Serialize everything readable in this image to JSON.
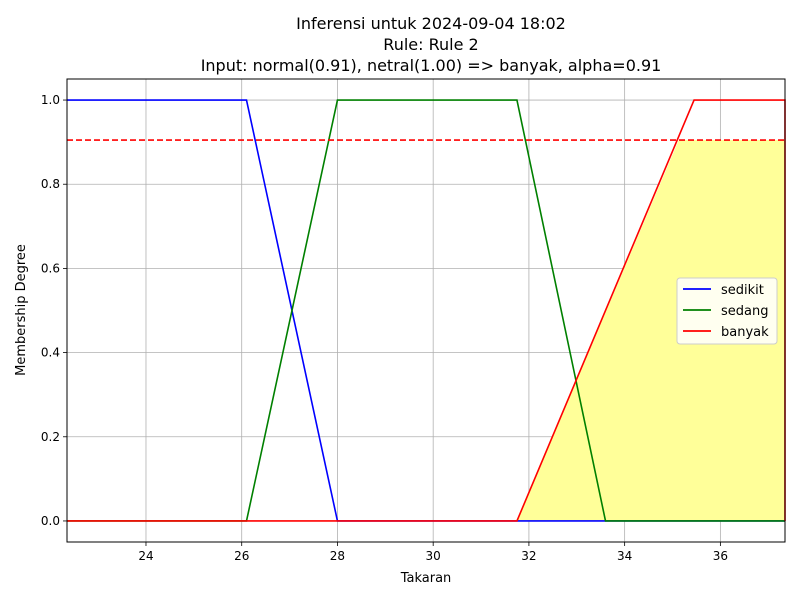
{
  "chart_data": {
    "type": "line",
    "title_lines": [
      "Inferensi untuk 2024-09-04 18:02",
      "Rule: Rule 2",
      "Input: normal(0.91), netral(1.00) => banyak, alpha=0.91"
    ],
    "xlabel": "Takaran",
    "ylabel": "Membership Degree",
    "xlim": [
      22.35,
      37.35
    ],
    "ylim": [
      -0.05,
      1.05
    ],
    "xticks": [
      24,
      26,
      28,
      30,
      32,
      34,
      36
    ],
    "yticks": [
      0.0,
      0.2,
      0.4,
      0.6,
      0.8,
      1.0
    ],
    "xtick_labels": [
      "24",
      "26",
      "28",
      "30",
      "32",
      "34",
      "36"
    ],
    "ytick_labels": [
      "0.0",
      "0.2",
      "0.4",
      "0.6",
      "0.8",
      "1.0"
    ],
    "grid": true,
    "legend_position": "center-right",
    "series": [
      {
        "name": "sedikit",
        "color": "#0000ff",
        "x": [
          22.35,
          26.1,
          28.0,
          37.35
        ],
        "y": [
          1.0,
          1.0,
          0.0,
          0.0
        ]
      },
      {
        "name": "sedang",
        "color": "#008000",
        "x": [
          22.35,
          26.1,
          28.0,
          31.75,
          33.6,
          37.35
        ],
        "y": [
          0.0,
          0.0,
          1.0,
          1.0,
          0.0,
          0.0
        ]
      },
      {
        "name": "banyak",
        "color": "#ff0000",
        "x": [
          22.35,
          31.75,
          35.45,
          37.35,
          37.35
        ],
        "y": [
          0.0,
          0.0,
          1.0,
          1.0,
          0.0
        ]
      }
    ],
    "alpha_line": {
      "value": 0.905,
      "color": "#ff0000",
      "style": "dashed"
    },
    "fill_region": {
      "color": "#ffff99",
      "x": [
        31.75,
        35.13,
        37.35,
        37.35
      ],
      "y": [
        0.0,
        0.905,
        0.905,
        0.0
      ]
    }
  }
}
